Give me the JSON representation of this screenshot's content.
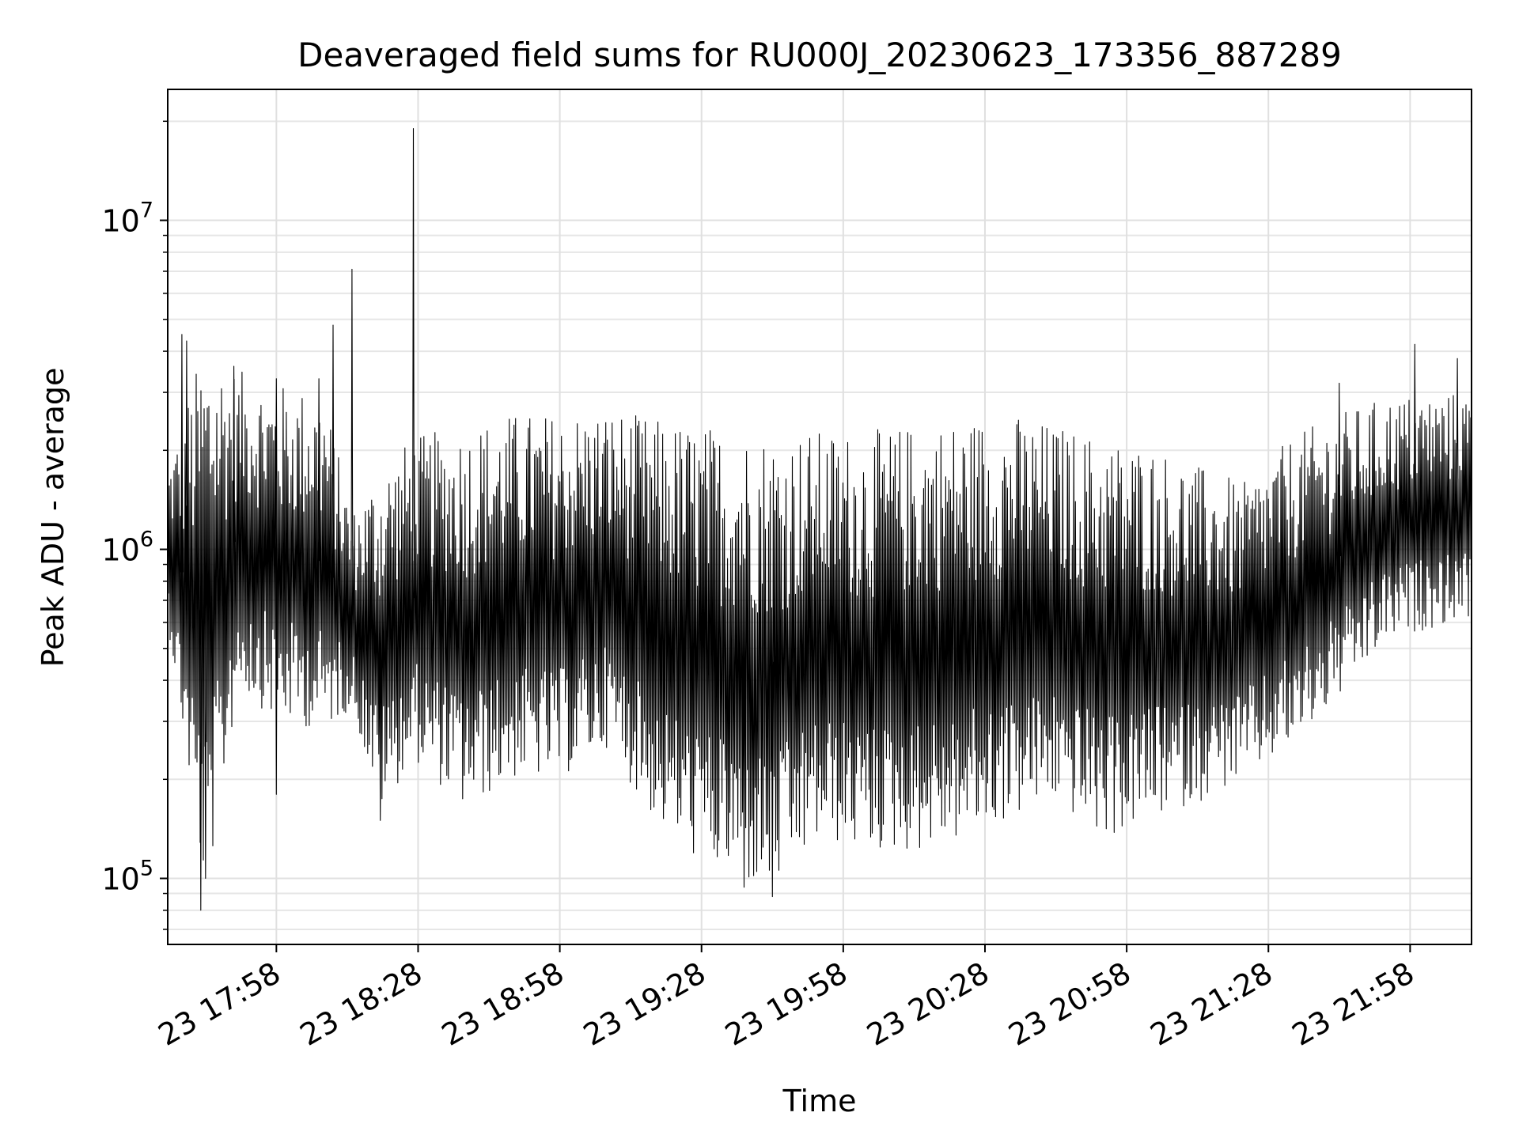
{
  "chart_data": {
    "type": "line",
    "title": "Deaveraged field sums for RU000J_20230623_173356_887289",
    "xlabel": "Time",
    "ylabel": "Peak ADU - average",
    "y_scale": "log",
    "ylim": [
      63000,
      25000000
    ],
    "xlim": [
      "2023-06-23 17:35",
      "2023-06-23 22:11"
    ],
    "grid": true,
    "x_ticks": [
      {
        "value": "2023-06-23 17:58",
        "label": "23 17:58"
      },
      {
        "value": "2023-06-23 18:28",
        "label": "23 18:28"
      },
      {
        "value": "2023-06-23 18:58",
        "label": "23 18:58"
      },
      {
        "value": "2023-06-23 19:28",
        "label": "23 19:28"
      },
      {
        "value": "2023-06-23 19:58",
        "label": "23 19:58"
      },
      {
        "value": "2023-06-23 20:28",
        "label": "23 20:28"
      },
      {
        "value": "2023-06-23 20:58",
        "label": "23 20:58"
      },
      {
        "value": "2023-06-23 21:28",
        "label": "23 21:28"
      },
      {
        "value": "2023-06-23 21:58",
        "label": "23 21:58"
      }
    ],
    "y_ticks": [
      {
        "value": 100000,
        "base": "10",
        "exp": "5"
      },
      {
        "value": 1000000,
        "base": "10",
        "exp": "6"
      },
      {
        "value": 10000000,
        "base": "10",
        "exp": "7"
      }
    ],
    "series": [
      {
        "color": "#000000",
        "envelope": [
          {
            "t": "2023-06-23 17:35",
            "low": 600000,
            "high": 1800000
          },
          {
            "t": "2023-06-23 17:43",
            "low": 85000,
            "high": 4400000
          },
          {
            "t": "2023-06-23 17:50",
            "low": 380000,
            "high": 3500000
          },
          {
            "t": "2023-06-23 17:58",
            "low": 300000,
            "high": 3200000
          },
          {
            "t": "2023-06-23 18:08",
            "low": 280000,
            "high": 3000000
          },
          {
            "t": "2023-06-23 18:14",
            "low": 330000,
            "high": 1300000
          },
          {
            "t": "2023-06-23 18:20",
            "low": 160000,
            "high": 1800000
          },
          {
            "t": "2023-06-23 18:27",
            "low": 230000,
            "high": 2200000
          },
          {
            "t": "2023-06-23 18:38",
            "low": 160000,
            "high": 2400000
          },
          {
            "t": "2023-06-23 18:48",
            "low": 200000,
            "high": 2600000
          },
          {
            "t": "2023-06-23 18:58",
            "low": 200000,
            "high": 2600000
          },
          {
            "t": "2023-06-23 19:08",
            "low": 250000,
            "high": 2700000
          },
          {
            "t": "2023-06-23 19:18",
            "low": 150000,
            "high": 2500000
          },
          {
            "t": "2023-06-23 19:28",
            "low": 110000,
            "high": 2400000
          },
          {
            "t": "2023-06-23 19:38",
            "low": 95000,
            "high": 2300000
          },
          {
            "t": "2023-06-23 19:43",
            "low": 90000,
            "high": 2300000
          },
          {
            "t": "2023-06-23 19:53",
            "low": 130000,
            "high": 2300000
          },
          {
            "t": "2023-06-23 20:03",
            "low": 120000,
            "high": 2300000
          },
          {
            "t": "2023-06-23 20:13",
            "low": 120000,
            "high": 2400000
          },
          {
            "t": "2023-06-23 20:23",
            "low": 130000,
            "high": 2500000
          },
          {
            "t": "2023-06-23 20:33",
            "low": 150000,
            "high": 2600000
          },
          {
            "t": "2023-06-23 20:43",
            "low": 170000,
            "high": 2400000
          },
          {
            "t": "2023-06-23 20:53",
            "low": 130000,
            "high": 2200000
          },
          {
            "t": "2023-06-23 21:03",
            "low": 150000,
            "high": 2100000
          },
          {
            "t": "2023-06-23 21:13",
            "low": 170000,
            "high": 1800000
          },
          {
            "t": "2023-06-23 21:23",
            "low": 200000,
            "high": 1600000
          },
          {
            "t": "2023-06-23 21:33",
            "low": 250000,
            "high": 2200000
          },
          {
            "t": "2023-06-23 21:43",
            "low": 350000,
            "high": 2600000
          },
          {
            "t": "2023-06-23 21:53",
            "low": 520000,
            "high": 2900000
          },
          {
            "t": "2023-06-23 22:03",
            "low": 580000,
            "high": 3000000
          },
          {
            "t": "2023-06-23 22:11",
            "low": 620000,
            "high": 3000000
          }
        ],
        "spikes": [
          {
            "t": "2023-06-23 17:38",
            "y": 4500000
          },
          {
            "t": "2023-06-23 17:39",
            "y": 4300000
          },
          {
            "t": "2023-06-23 17:42",
            "y": 80000
          },
          {
            "t": "2023-06-23 17:43",
            "y": 100000
          },
          {
            "t": "2023-06-23 17:49",
            "y": 3600000
          },
          {
            "t": "2023-06-23 17:58",
            "y": 3300000
          },
          {
            "t": "2023-06-23 17:58",
            "y": 180000
          },
          {
            "t": "2023-06-23 18:07",
            "y": 3300000
          },
          {
            "t": "2023-06-23 18:10",
            "y": 4800000
          },
          {
            "t": "2023-06-23 18:14",
            "y": 7100000
          },
          {
            "t": "2023-06-23 18:20",
            "y": 150000
          },
          {
            "t": "2023-06-23 18:27",
            "y": 19000000
          },
          {
            "t": "2023-06-23 19:37",
            "y": 94000
          },
          {
            "t": "2023-06-23 19:43",
            "y": 88000
          },
          {
            "t": "2023-06-23 21:43",
            "y": 3200000
          },
          {
            "t": "2023-06-23 21:59",
            "y": 4200000
          },
          {
            "t": "2023-06-23 22:08",
            "y": 3800000
          }
        ]
      }
    ]
  }
}
